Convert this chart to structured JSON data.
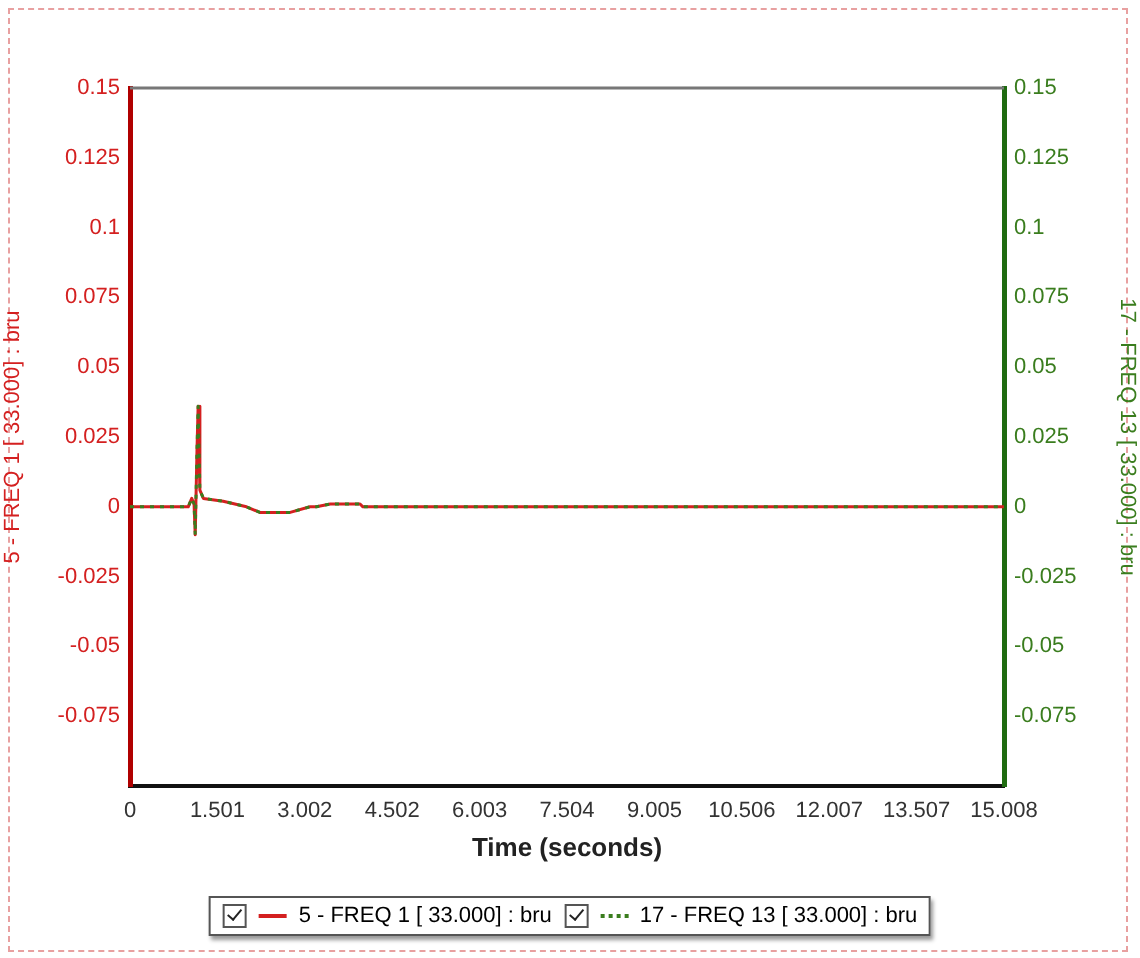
{
  "chart_data": {
    "type": "line",
    "xlabel": "Time (seconds)",
    "ylabel": "5 - FREQ 1 [ 33.000] : bru",
    "y2label": "17 - FREQ 13 [ 33.000] : bru",
    "x": [
      0,
      1.0,
      1.06,
      1.1,
      1.12,
      1.15,
      1.17,
      1.2,
      1.26,
      1.6,
      2.0,
      2.23,
      2.75,
      3.09,
      3.2,
      3.44,
      3.95,
      4.0,
      15.008
    ],
    "series": [
      {
        "name": "5 - FREQ 1 [ 33.000] : bru",
        "color": "#d42020",
        "values": [
          0,
          0,
          0.003,
          0.001,
          -0.01,
          0.02,
          0.036,
          0.006,
          0.003,
          0.002,
          0,
          -0.002,
          -0.002,
          0,
          0,
          0.001,
          0.001,
          0,
          0
        ]
      },
      {
        "name": "17 - FREQ 13 [ 33.000] : bru",
        "color": "#3a7d1e",
        "axis": "y2",
        "line_style": "dotted",
        "values": [
          0,
          0,
          0.003,
          0.001,
          -0.01,
          0.02,
          0.036,
          0.006,
          0.003,
          0.002,
          0,
          -0.002,
          -0.002,
          0,
          0,
          0.001,
          0.001,
          0,
          0
        ]
      }
    ],
    "xlim": [
      0,
      15.008
    ],
    "xticks": [
      0,
      1.501,
      3.002,
      4.502,
      6.003,
      7.504,
      9.005,
      10.506,
      12.007,
      13.507,
      15.008
    ],
    "ylim": [
      -0.1,
      0.15
    ],
    "yticks": [
      -0.075,
      -0.05,
      -0.025,
      0,
      0.025,
      0.05,
      0.075,
      0.1,
      0.125,
      0.15
    ],
    "y2lim": [
      -0.1,
      0.15
    ],
    "y2ticks": [
      -0.075,
      -0.05,
      -0.025,
      0,
      0.025,
      0.05,
      0.075,
      0.1,
      0.125,
      0.15
    ],
    "grid": false,
    "legend": "bottom",
    "marker": "none",
    "line_style": "solid"
  }
}
